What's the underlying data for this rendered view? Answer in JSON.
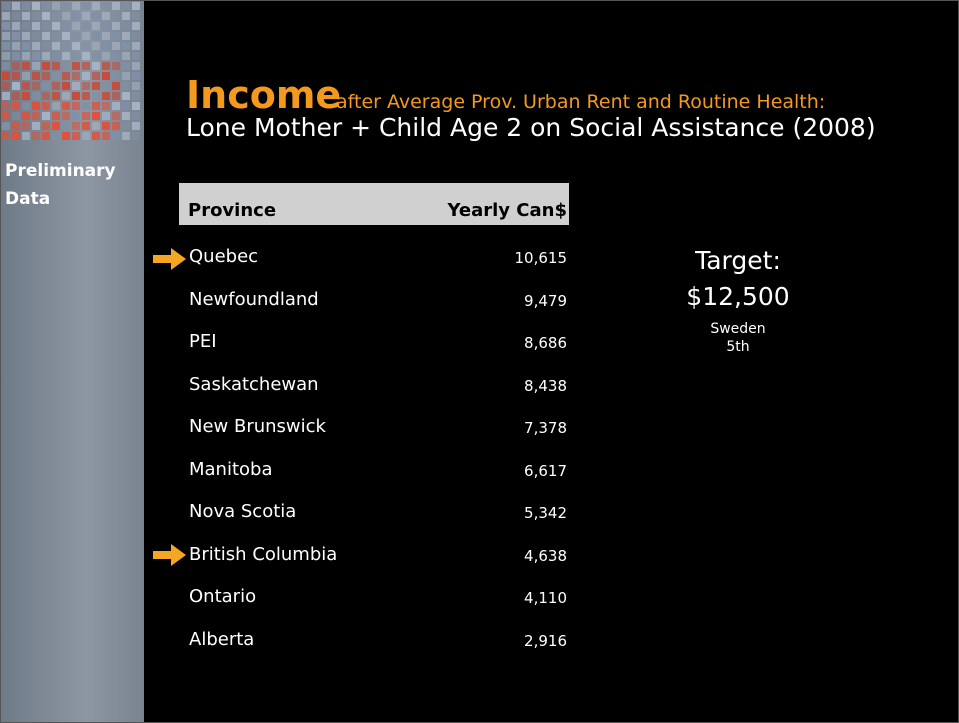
{
  "sidebar": {
    "label": "Preliminary Data"
  },
  "header": {
    "title": "Income",
    "subtitle": "after Average Prov. Urban Rent and Routine Health:",
    "title2": "Lone Mother + Child Age 2 on Social Assistance (2008)"
  },
  "table": {
    "columns": [
      "Province",
      "Yearly Can$"
    ],
    "rows": [
      [
        "Quebec",
        "10,615"
      ],
      [
        "Newfoundland",
        "9,479"
      ],
      [
        "PEI",
        "8,686"
      ],
      [
        "Saskatchewan",
        "8,438"
      ],
      [
        "New Brunswick",
        "7,378"
      ],
      [
        "Manitoba",
        "6,617"
      ],
      [
        "Nova Scotia",
        "5,342"
      ],
      [
        "British Columbia",
        "4,638"
      ],
      [
        "Ontario",
        "4,110"
      ],
      [
        "Alberta",
        "2,916"
      ]
    ]
  },
  "target": {
    "label": "Target:",
    "amount": "$12,500",
    "country": "Sweden",
    "rank": "5th"
  }
}
